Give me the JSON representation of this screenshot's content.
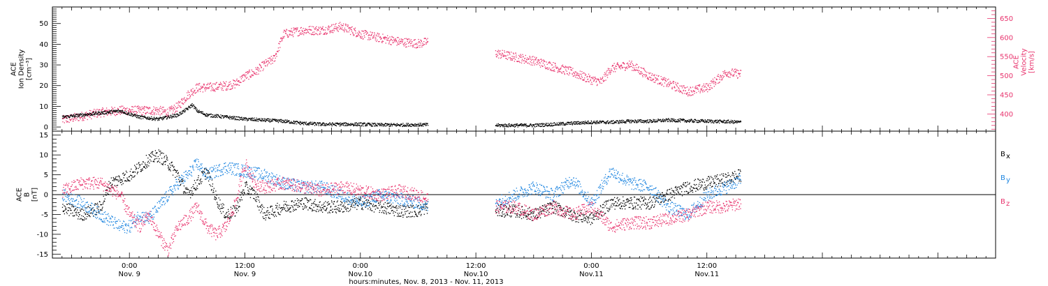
{
  "colors": {
    "black": "#000000",
    "pink": "#e8336d",
    "blue": "#1f86e0"
  },
  "x_axis": {
    "title": "hours:minutes, Nov.  8, 2013 - Nov. 11, 2013",
    "range_hours": [
      -8,
      90
    ],
    "ticks": [
      {
        "h": 0,
        "time": "0:00",
        "day": "Nov. 9"
      },
      {
        "h": 12,
        "time": "12:00",
        "day": "Nov. 9"
      },
      {
        "h": 24,
        "time": "0:00",
        "day": "Nov.10"
      },
      {
        "h": 36,
        "time": "12:00",
        "day": "Nov.10"
      },
      {
        "h": 48,
        "time": "0:00",
        "day": "Nov.11"
      },
      {
        "h": 60,
        "time": "12:00",
        "day": "Nov.11"
      }
    ]
  },
  "chart_data": [
    {
      "type": "scatter",
      "panel": "top",
      "ylabel_left": [
        "ACE",
        "Ion Density",
        "[cm^-3]"
      ],
      "ylabel_right": [
        "ACE",
        "Velocity",
        "[km/s]"
      ],
      "ylim_left": [
        -2,
        58
      ],
      "ylim_right": [
        355,
        680
      ],
      "yticks_left": [
        0,
        10,
        20,
        30,
        40,
        50
      ],
      "yticks_right": [
        400,
        450,
        500,
        550,
        600,
        650
      ],
      "gap_hours": [
        31,
        38
      ],
      "series": [
        {
          "axis": "left",
          "color": "#000000",
          "x": [
            -7,
            -5,
            -3,
            -1,
            1,
            3,
            5,
            6,
            6.5,
            7,
            8,
            10,
            12,
            14,
            16,
            18,
            20,
            22,
            24,
            26,
            28,
            30,
            38,
            40,
            42,
            44,
            46,
            48,
            50,
            52,
            54,
            56,
            58,
            60,
            62,
            63.5
          ],
          "y": [
            5,
            6,
            7,
            8,
            5,
            4,
            6,
            9,
            11,
            8,
            6,
            5,
            4,
            3.5,
            3,
            2,
            1.5,
            1.5,
            1.5,
            1.2,
            1.2,
            1.3,
            1,
            1,
            1,
            1.5,
            2,
            2.5,
            2.5,
            3,
            3,
            3.5,
            3.2,
            3,
            2.8,
            2.5
          ]
        },
        {
          "axis": "right",
          "color": "#e8336d",
          "x": [
            -7,
            -5,
            -3,
            -1,
            1,
            3,
            4,
            5,
            6,
            7,
            8,
            10,
            11,
            12,
            13,
            14,
            15,
            16,
            18,
            20,
            22,
            24,
            26,
            28,
            30,
            31,
            38,
            40,
            42,
            44,
            46,
            48,
            49,
            50,
            52,
            54,
            56,
            58,
            60,
            62,
            63.5
          ],
          "y": [
            385,
            395,
            405,
            410,
            410,
            410,
            405,
            420,
            450,
            470,
            470,
            475,
            480,
            500,
            510,
            530,
            545,
            610,
            620,
            620,
            630,
            610,
            600,
            590,
            585,
            590,
            560,
            550,
            540,
            525,
            510,
            490,
            485,
            520,
            530,
            500,
            480,
            460,
            470,
            510,
            505
          ]
        }
      ]
    },
    {
      "type": "scatter",
      "panel": "bottom",
      "ylabel_left": [
        "ACE",
        "B",
        "[nT]"
      ],
      "ylim": [
        -16,
        16
      ],
      "yticks": [
        -15,
        -10,
        -5,
        0,
        5,
        10,
        15
      ],
      "legend": [
        {
          "label": "B",
          "sub": "x",
          "color": "#000000"
        },
        {
          "label": "B",
          "sub": "y",
          "color": "#1f86e0"
        },
        {
          "label": "B",
          "sub": "z",
          "color": "#e8336d"
        }
      ],
      "gap_hours": [
        31,
        38
      ],
      "series": [
        {
          "name": "Bx",
          "color": "#000000",
          "x": [
            -7,
            -5,
            -3,
            -2,
            0,
            2,
            3,
            4,
            5,
            6,
            7,
            8,
            9,
            10,
            11,
            12,
            13,
            14,
            16,
            18,
            20,
            22,
            24,
            26,
            28,
            30,
            31,
            38,
            40,
            42,
            44,
            46,
            48,
            50,
            52,
            54,
            56,
            58,
            60,
            62,
            63.5
          ],
          "y": [
            -3,
            -5,
            -3,
            3,
            5,
            9,
            10,
            8,
            5,
            0,
            3,
            6,
            -1,
            -5,
            -4,
            2,
            0,
            -5,
            -3,
            -2,
            -3,
            -3,
            -2,
            -3,
            -4,
            -4,
            -3,
            -4,
            -4,
            -5,
            -3,
            -5,
            -6,
            -2,
            -2,
            -2,
            0,
            2,
            3,
            4,
            5
          ]
        },
        {
          "name": "By",
          "color": "#1f86e0",
          "x": [
            -7,
            -5,
            -3,
            -1,
            0,
            1,
            2,
            3,
            4,
            5,
            6,
            7,
            8,
            10,
            12,
            14,
            16,
            18,
            20,
            22,
            24,
            26,
            28,
            30,
            31,
            38,
            40,
            42,
            44,
            46,
            48,
            50,
            52,
            54,
            56,
            58,
            60,
            62,
            63.5
          ],
          "y": [
            0,
            -2,
            -5,
            -8,
            -8,
            -5,
            -6,
            -3,
            0,
            3,
            5,
            8,
            5,
            7,
            6,
            5,
            3,
            2,
            2,
            0,
            -2,
            0,
            -1,
            -2,
            -3,
            -2,
            0,
            2,
            0,
            4,
            -2,
            6,
            3,
            2,
            -3,
            -5,
            0,
            2,
            4
          ]
        },
        {
          "name": "Bz",
          "color": "#e8336d",
          "x": [
            -7,
            -5,
            -3,
            -1,
            0,
            1,
            2,
            3,
            4,
            5,
            6,
            7,
            8,
            9,
            10,
            11,
            12,
            13,
            14,
            16,
            18,
            20,
            22,
            24,
            26,
            28,
            30,
            31,
            38,
            40,
            42,
            44,
            46,
            48,
            50,
            52,
            54,
            56,
            58,
            60,
            62,
            63.5
          ],
          "y": [
            1,
            3,
            3,
            0,
            -5,
            -8,
            -5,
            -10,
            -14,
            -8,
            -6,
            -3,
            -8,
            -10,
            -8,
            -2,
            8,
            3,
            2,
            3,
            2,
            1,
            2,
            1,
            0,
            1,
            0,
            -1,
            -3,
            -3,
            -5,
            -3,
            -5,
            -3,
            -8,
            -7,
            -7,
            -6,
            -5,
            -3,
            -3,
            -2
          ]
        }
      ]
    }
  ]
}
